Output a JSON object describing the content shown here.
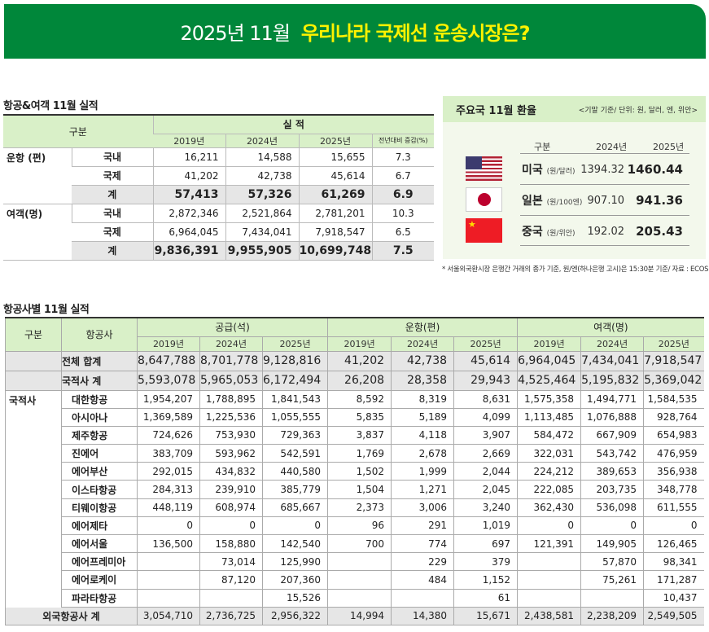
{
  "banner": {
    "prefix": "2025년 11월",
    "title": "우리나라 국제선 운송시장은?"
  },
  "summary": {
    "title": "항공&여객 11월 실적",
    "header": {
      "category": "구분",
      "group": "실 적",
      "years": [
        "2019년",
        "2024년",
        "2025년"
      ],
      "change": "전년대비 증감(%)"
    },
    "groups": [
      {
        "label": "운항 (편)",
        "rows": [
          {
            "label": "국내",
            "values": [
              "16,211",
              "14,588",
              "15,655",
              "7.3"
            ]
          },
          {
            "label": "국제",
            "values": [
              "41,202",
              "42,738",
              "45,614",
              "6.7"
            ]
          },
          {
            "label": "계",
            "values": [
              "57,413",
              "57,326",
              "61,269",
              "6.9"
            ],
            "total": true
          }
        ]
      },
      {
        "label": "여객(명)",
        "rows": [
          {
            "label": "국내",
            "values": [
              "2,872,346",
              "2,521,864",
              "2,781,201",
              "10.3"
            ]
          },
          {
            "label": "국제",
            "values": [
              "6,964,045",
              "7,434,041",
              "7,918,547",
              "6.5"
            ]
          },
          {
            "label": "계",
            "values": [
              "9,836,391",
              "9,955,905",
              "10,699,748",
              "7.5"
            ],
            "total": true
          }
        ]
      }
    ]
  },
  "fx": {
    "title": "주요국 11월 환율",
    "unit": "<기말 기준/ 단위: 원, 달러, 엔, 위안>",
    "header": {
      "category": "구분",
      "y1": "2024년",
      "y2": "2025년"
    },
    "rows": [
      {
        "country": "미국",
        "unit": "(원/달러)",
        "flag": "us-flag",
        "v2024": "1394.32",
        "v2025": "1460.44"
      },
      {
        "country": "일본",
        "unit": "(원/100엔)",
        "flag": "japan-flag",
        "v2024": "907.10",
        "v2025": "941.36"
      },
      {
        "country": "중국",
        "unit": "(원/위안)",
        "flag": "china-flag",
        "v2024": "192.02",
        "v2025": "205.43"
      }
    ],
    "note": "* 서울외국환시장 은행간 거래의 종가 기준, 원/엔(하나은행 고시)은 15:30분 기준/ 자료 : ECOS"
  },
  "airlines": {
    "title": "항공사별 11월 실적",
    "header": {
      "category": "구분",
      "airline": "항공사",
      "groups": [
        "공급(석)",
        "운항(편)",
        "여객(명)"
      ],
      "years": [
        "2019년",
        "2024년",
        "2025년"
      ]
    },
    "total": {
      "label": "전체 합계",
      "values": [
        "8,647,788",
        "8,701,778",
        "9,128,816",
        "41,202",
        "42,738",
        "45,614",
        "6,964,045",
        "7,434,041",
        "7,918,547"
      ]
    },
    "national_total": {
      "label": "국적사 계",
      "values": [
        "5,593,078",
        "5,965,053",
        "6,172,494",
        "26,208",
        "28,358",
        "29,943",
        "4,525,464",
        "5,195,832",
        "5,369,042"
      ]
    },
    "national_label": "국적사",
    "rows": [
      {
        "name": "대한항공",
        "values": [
          "1,954,207",
          "1,788,895",
          "1,841,543",
          "8,592",
          "8,319",
          "8,631",
          "1,575,358",
          "1,494,771",
          "1,584,535"
        ]
      },
      {
        "name": "아시아나",
        "values": [
          "1,369,589",
          "1,225,536",
          "1,055,555",
          "5,835",
          "5,189",
          "4,099",
          "1,113,485",
          "1,076,888",
          "928,764"
        ]
      },
      {
        "name": "제주항공",
        "values": [
          "724,626",
          "753,930",
          "729,363",
          "3,837",
          "4,118",
          "3,907",
          "584,472",
          "667,909",
          "654,983"
        ]
      },
      {
        "name": "진에어",
        "values": [
          "383,709",
          "593,962",
          "542,591",
          "1,769",
          "2,678",
          "2,669",
          "322,031",
          "543,742",
          "476,959"
        ]
      },
      {
        "name": "에어부산",
        "values": [
          "292,015",
          "434,832",
          "440,580",
          "1,502",
          "1,999",
          "2,044",
          "224,212",
          "389,653",
          "356,938"
        ]
      },
      {
        "name": "이스타항공",
        "values": [
          "284,313",
          "239,910",
          "385,779",
          "1,504",
          "1,271",
          "2,045",
          "222,085",
          "203,735",
          "348,778"
        ]
      },
      {
        "name": "티웨이항공",
        "values": [
          "448,119",
          "608,974",
          "685,667",
          "2,373",
          "3,006",
          "3,240",
          "362,430",
          "536,098",
          "611,555"
        ]
      },
      {
        "name": "에어제타",
        "values": [
          "0",
          "0",
          "0",
          "96",
          "291",
          "1,019",
          "0",
          "0",
          "0"
        ]
      },
      {
        "name": "에어서울",
        "values": [
          "136,500",
          "158,880",
          "142,540",
          "700",
          "774",
          "697",
          "121,391",
          "149,905",
          "126,465"
        ]
      },
      {
        "name": "에어프레미아",
        "values": [
          "",
          "73,014",
          "125,990",
          "",
          "229",
          "379",
          "",
          "57,870",
          "98,341"
        ]
      },
      {
        "name": "에어로케이",
        "values": [
          "",
          "87,120",
          "207,360",
          "",
          "484",
          "1,152",
          "",
          "75,261",
          "171,287"
        ]
      },
      {
        "name": "파라타항공",
        "values": [
          "",
          "",
          "15,526",
          "",
          "",
          "61",
          "",
          "",
          "10,437"
        ]
      }
    ],
    "foreign_total": {
      "label": "외국항공사 계",
      "values": [
        "3,054,710",
        "2,736,725",
        "2,956,322",
        "14,994",
        "14,380",
        "15,671",
        "2,438,581",
        "2,238,209",
        "2,549,505"
      ]
    }
  },
  "colors": {
    "banner": "#00873a",
    "banner_title": "#fff200",
    "header_bg": "#d9f0c8",
    "total_bg": "#e6e6e6"
  }
}
